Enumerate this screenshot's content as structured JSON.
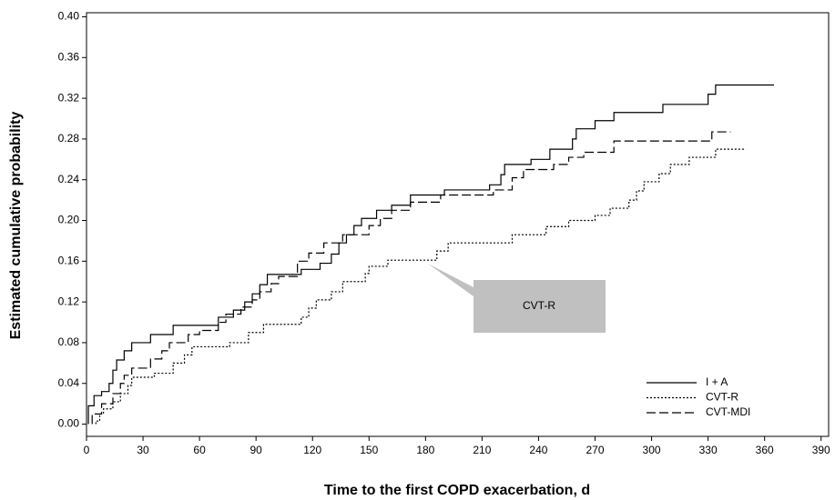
{
  "chart_data": {
    "type": "step",
    "x_label": "Time to the first COPD exacerbation, d",
    "y_label": "Estimated cumulative probability",
    "annotation": "CVT-R",
    "xlim": [
      0,
      394
    ],
    "ylim": [
      -0.012,
      0.404
    ],
    "xticks": [
      0,
      30,
      60,
      90,
      120,
      150,
      180,
      210,
      240,
      270,
      300,
      330,
      360,
      390
    ],
    "yticks": [
      {
        "value": 0,
        "label": "0.00"
      },
      {
        "value": 0.04,
        "label": "0.04"
      },
      {
        "value": 0.08,
        "label": "0.08"
      },
      {
        "value": 0.12,
        "label": "0.12"
      },
      {
        "value": 0.16,
        "label": "0.16"
      },
      {
        "value": 0.2,
        "label": "0.20"
      },
      {
        "value": 0.24,
        "label": "0.24"
      },
      {
        "value": 0.28,
        "label": "0.28"
      },
      {
        "value": 0.32,
        "label": "0.32"
      },
      {
        "value": 0.36,
        "label": "0.36"
      },
      {
        "value": 0.4,
        "label": "0.40"
      }
    ],
    "legend": "lower right",
    "series": [
      {
        "name": "I + A",
        "color": "#000000",
        "style": "solid",
        "x": [
          1,
          4,
          8,
          12,
          14,
          16,
          20,
          24,
          34,
          46,
          70,
          78,
          84,
          88,
          92,
          96,
          114,
          124,
          130,
          134,
          138,
          142,
          146,
          154,
          162,
          172,
          190,
          214,
          220,
          222,
          236,
          246,
          258,
          260,
          270,
          280,
          306,
          330,
          334,
          365
        ],
        "values": [
          0.018,
          0.028,
          0.032,
          0.04,
          0.053,
          0.063,
          0.072,
          0.08,
          0.088,
          0.097,
          0.105,
          0.112,
          0.12,
          0.128,
          0.137,
          0.147,
          0.152,
          0.158,
          0.167,
          0.178,
          0.186,
          0.195,
          0.202,
          0.21,
          0.215,
          0.225,
          0.23,
          0.235,
          0.245,
          0.255,
          0.26,
          0.27,
          0.28,
          0.29,
          0.298,
          0.306,
          0.314,
          0.324,
          0.333,
          0.333
        ]
      },
      {
        "name": "CVT-R",
        "color": "#000000",
        "style": "dotted",
        "x": [
          5,
          7,
          9,
          14,
          18,
          22,
          24,
          36,
          46,
          52,
          56,
          76,
          86,
          94,
          114,
          118,
          122,
          130,
          136,
          148,
          150,
          160,
          186,
          192,
          226,
          244,
          256,
          270,
          278,
          288,
          292,
          296,
          304,
          310,
          320,
          334,
          350
        ],
        "values": [
          0.003,
          0.01,
          0.015,
          0.022,
          0.03,
          0.038,
          0.046,
          0.05,
          0.06,
          0.068,
          0.076,
          0.08,
          0.09,
          0.098,
          0.105,
          0.114,
          0.122,
          0.13,
          0.14,
          0.148,
          0.155,
          0.161,
          0.17,
          0.178,
          0.186,
          0.194,
          0.2,
          0.205,
          0.212,
          0.22,
          0.229,
          0.238,
          0.246,
          0.255,
          0.262,
          0.27,
          0.27
        ]
      },
      {
        "name": "CVT-MDI",
        "color": "#000000",
        "style": "dashed",
        "x": [
          3,
          8,
          14,
          18,
          20,
          24,
          34,
          40,
          44,
          54,
          60,
          70,
          74,
          82,
          88,
          92,
          98,
          102,
          112,
          118,
          126,
          136,
          150,
          156,
          162,
          172,
          188,
          216,
          226,
          232,
          248,
          256,
          264,
          280,
          332,
          342
        ],
        "values": [
          0.01,
          0.02,
          0.03,
          0.04,
          0.048,
          0.055,
          0.064,
          0.072,
          0.08,
          0.088,
          0.092,
          0.1,
          0.108,
          0.115,
          0.122,
          0.13,
          0.138,
          0.145,
          0.16,
          0.168,
          0.178,
          0.186,
          0.195,
          0.202,
          0.21,
          0.218,
          0.225,
          0.23,
          0.242,
          0.25,
          0.255,
          0.262,
          0.267,
          0.278,
          0.287,
          0.287
        ]
      }
    ]
  }
}
